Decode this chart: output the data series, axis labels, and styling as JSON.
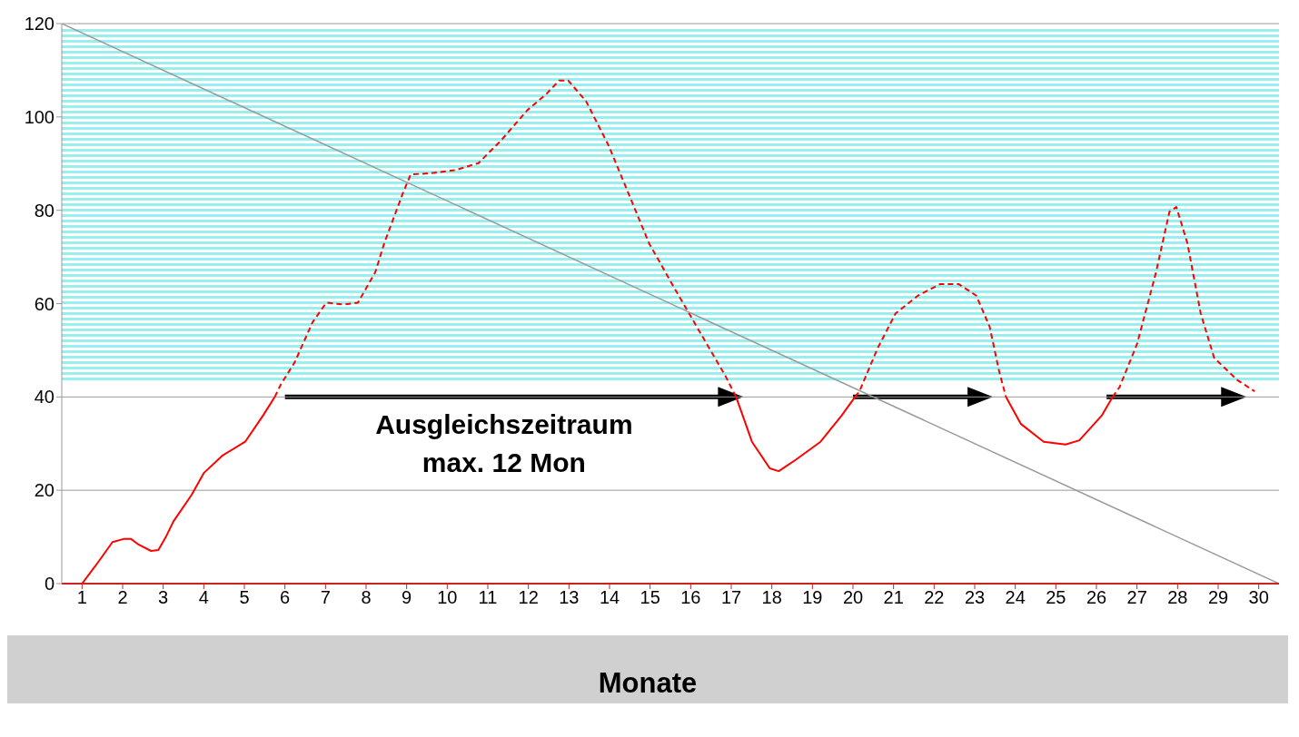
{
  "chart_data": {
    "type": "line",
    "xlabel": "Monate",
    "x": [
      1,
      1.33,
      1.75,
      2.04,
      2.2,
      2.37,
      2.7,
      2.88,
      3.06,
      3.25,
      3.7,
      4.0,
      4.47,
      5.02,
      5.46,
      5.75,
      5.9,
      6.24,
      6.68,
      7.02,
      7.45,
      7.8,
      8.23,
      8.45,
      8.9,
      9.1,
      9.55,
      10.2,
      10.77,
      11.32,
      11.98,
      12.43,
      12.76,
      12.98,
      13.42,
      13.97,
      14.52,
      14.97,
      15.52,
      15.96,
      16.4,
      16.85,
      17.12,
      17.51,
      17.95,
      18.17,
      18.6,
      19.2,
      19.72,
      20.05,
      20.16,
      20.6,
      21.05,
      21.6,
      22.15,
      22.6,
      23.04,
      23.37,
      23.6,
      23.77,
      24.14,
      24.7,
      25.24,
      25.58,
      26.13,
      26.4,
      26.57,
      27.0,
      27.46,
      27.8,
      27.97,
      28.24,
      28.57,
      28.9,
      29.46,
      29.9
    ],
    "series": [
      {
        "color": "#ff0000",
        "line_style": "solid",
        "values": [
          0,
          3.8,
          8.9,
          9.6,
          9.6,
          8.5,
          7,
          7.2,
          9.9,
          13.3,
          19,
          23.7,
          27.5,
          30.4,
          36,
          40,
          null,
          null,
          null,
          null,
          null,
          null,
          null,
          null,
          null,
          null,
          null,
          null,
          null,
          null,
          null,
          null,
          null,
          null,
          null,
          null,
          null,
          null,
          null,
          null,
          null,
          null,
          40,
          30.4,
          24.7,
          24.1,
          26.6,
          30.4,
          36,
          40,
          null,
          null,
          null,
          null,
          null,
          null,
          null,
          null,
          null,
          40,
          34.2,
          30.4,
          29.8,
          30.7,
          36,
          40,
          null,
          null,
          null,
          null,
          null,
          null,
          null,
          null,
          null,
          null
        ]
      },
      {
        "color": "#ff0000",
        "line_style": "dashed",
        "values": [
          null,
          null,
          null,
          null,
          null,
          null,
          null,
          null,
          null,
          null,
          null,
          null,
          null,
          null,
          null,
          40,
          42.7,
          47.4,
          56,
          60.2,
          59.8,
          60.2,
          66.8,
          73,
          83.5,
          87.7,
          87.9,
          88.6,
          90.1,
          94.9,
          101.5,
          104.8,
          107.8,
          107.8,
          103.4,
          94,
          82.5,
          73,
          64.5,
          57.9,
          51.3,
          44.6,
          40,
          null,
          null,
          null,
          null,
          null,
          null,
          40,
          41.2,
          50.3,
          57.9,
          61.7,
          64.2,
          64.2,
          61.7,
          55,
          45.6,
          40,
          null,
          null,
          null,
          null,
          null,
          40,
          42.1,
          51.3,
          66.4,
          79.7,
          80.7,
          73,
          57.9,
          48.4,
          43.7,
          41.2
        ]
      },
      {
        "type": "line",
        "color": "#999999",
        "line_style": "solid",
        "x": [
          0.5,
          30.5
        ],
        "values": [
          120,
          0
        ]
      }
    ],
    "xlim": [
      0.5,
      30.5
    ],
    "xticks": [
      1,
      2,
      3,
      4,
      5,
      6,
      7,
      8,
      9,
      10,
      11,
      12,
      13,
      14,
      15,
      16,
      17,
      18,
      19,
      20,
      21,
      22,
      23,
      24,
      25,
      26,
      27,
      28,
      29,
      30
    ],
    "ylim": [
      0,
      120
    ],
    "yticks": [
      0,
      20,
      40,
      60,
      80,
      100,
      120
    ],
    "bands": [
      {
        "axis": "y",
        "from": 43,
        "to": 119,
        "color": "#99eeee"
      }
    ],
    "annotations": [
      "Ausgleichszeitraum\nmax. 12 Mon"
    ],
    "grid": "y",
    "marker": "none"
  }
}
